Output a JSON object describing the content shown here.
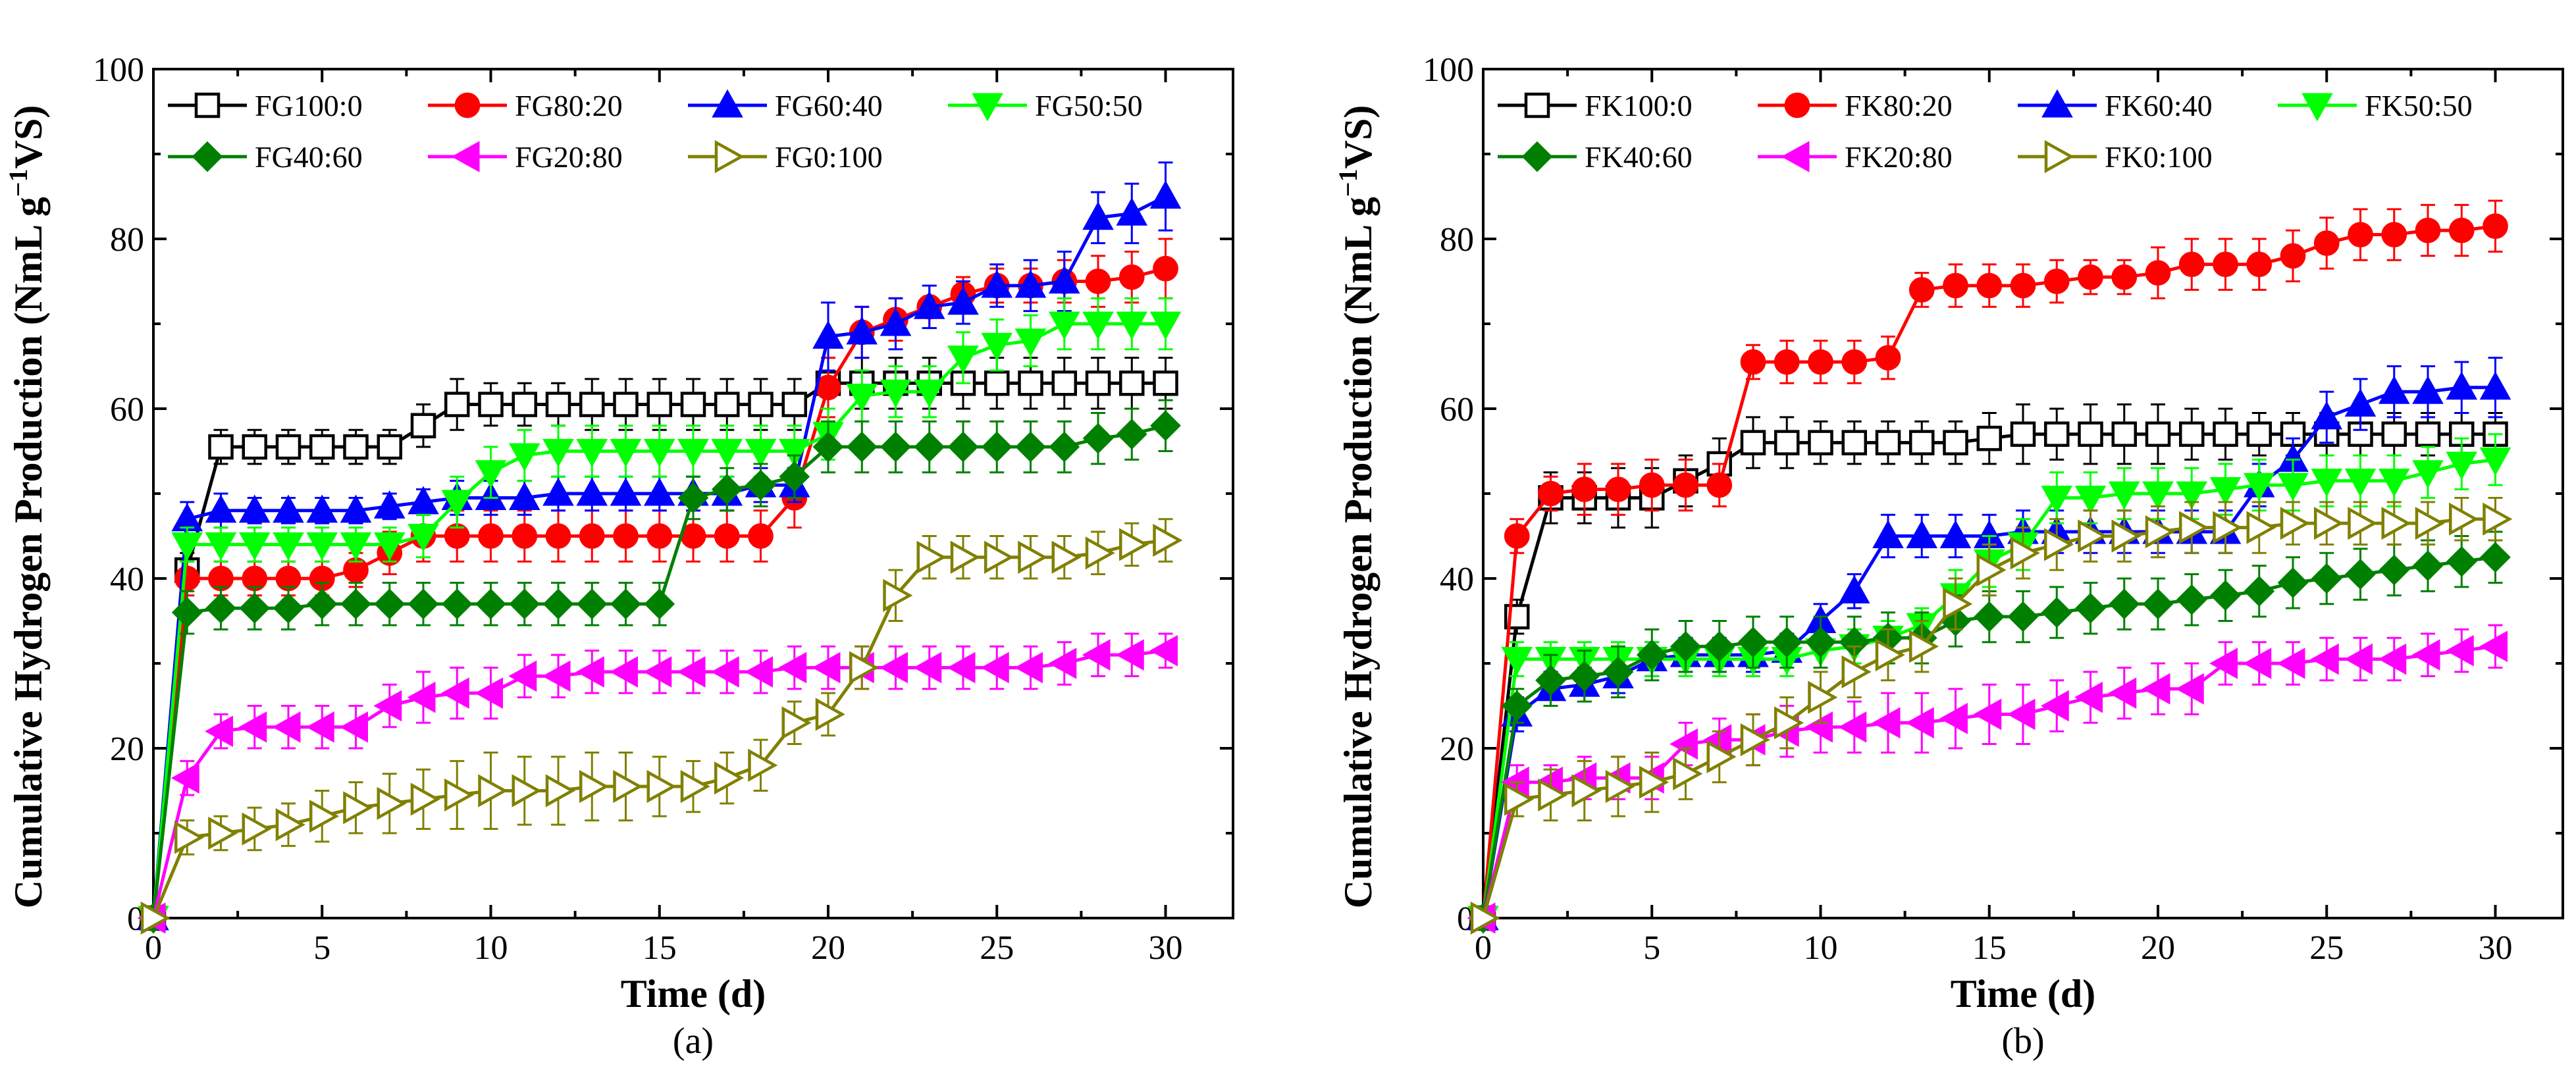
{
  "chart_data": [
    {
      "type": "line",
      "panel_label": "(a)",
      "xlabel": "Time (d)",
      "ylabel": "Cumulative Hydrogen Production (NmL g-1VS)",
      "ylabel_parts": {
        "main": "Cumulative Hydrogen Production (NmL g",
        "sup": "−1",
        "tail": "VS)"
      },
      "xlim": [
        0,
        32
      ],
      "ylim": [
        0,
        100
      ],
      "xticks": [
        0,
        5,
        10,
        15,
        20,
        25,
        30
      ],
      "yticks": [
        0,
        20,
        40,
        60,
        80,
        100
      ],
      "legend_position": "top-left",
      "x": [
        0,
        1,
        2,
        3,
        4,
        5,
        6,
        7,
        8,
        9,
        10,
        11,
        12,
        13,
        14,
        15,
        16,
        17,
        18,
        19,
        20,
        21,
        22,
        23,
        24,
        25,
        26,
        27,
        28,
        29,
        30
      ],
      "series": [
        {
          "name": "FG100:0",
          "color": "#000000",
          "marker": "square-open",
          "values": [
            0,
            41,
            55.5,
            55.5,
            55.5,
            55.5,
            55.5,
            55.5,
            58,
            60.5,
            60.5,
            60.5,
            60.5,
            60.5,
            60.5,
            60.5,
            60.5,
            60.5,
            60.5,
            60.5,
            63,
            63,
            63,
            63,
            63,
            63,
            63,
            63,
            63,
            63,
            63
          ],
          "errors": [
            0,
            2,
            2,
            2,
            2,
            2,
            2,
            2,
            2.5,
            3,
            2.5,
            2.5,
            2.5,
            3,
            3,
            3,
            3,
            3,
            3,
            3,
            3,
            3,
            3,
            3,
            3,
            3,
            3,
            3,
            3,
            3,
            3
          ]
        },
        {
          "name": "FG80:20",
          "color": "#ff0000",
          "marker": "circle",
          "values": [
            0,
            40,
            40,
            40,
            40,
            40,
            41,
            43,
            45,
            45,
            45,
            45,
            45,
            45,
            45,
            45,
            45,
            45,
            45,
            49.5,
            62.5,
            69,
            70.5,
            72,
            73.5,
            74.5,
            74.5,
            75,
            75,
            75.5,
            76.5
          ],
          "errors": [
            0,
            2,
            2,
            2,
            2,
            2,
            2,
            2.5,
            3,
            3,
            3,
            3,
            3,
            3,
            3,
            3,
            3,
            3,
            3,
            3.5,
            3.5,
            3,
            2.5,
            2.5,
            2,
            2,
            2,
            2.5,
            3,
            3,
            3.5
          ]
        },
        {
          "name": "FG60:40",
          "color": "#0000ff",
          "marker": "triangle-up",
          "values": [
            0,
            47,
            48,
            48,
            48,
            48,
            48,
            48.5,
            49,
            49.5,
            49.5,
            49.5,
            50,
            50,
            50,
            50,
            50,
            50,
            51,
            51,
            68.5,
            69,
            70,
            72,
            72.5,
            74.5,
            74.5,
            75,
            82.5,
            83,
            85
          ],
          "errors": [
            0,
            2,
            2,
            1.5,
            1.5,
            1.5,
            1.5,
            1.5,
            1.5,
            2,
            2,
            2,
            2,
            2,
            2,
            2,
            2,
            2,
            2,
            2,
            4,
            3,
            3,
            2.5,
            2.5,
            2.5,
            3,
            3.5,
            3,
            3.5,
            4
          ]
        },
        {
          "name": "FG50:50",
          "color": "#00ff00",
          "marker": "triangle-down",
          "values": [
            0,
            44,
            44,
            44,
            44,
            44,
            44,
            44,
            45,
            49,
            52.5,
            54.5,
            55,
            55,
            55,
            55,
            55,
            55,
            55,
            55,
            57,
            61.5,
            62,
            62,
            66,
            67.5,
            68,
            70,
            70,
            70,
            70
          ],
          "errors": [
            0,
            2,
            2,
            2,
            2,
            2,
            2,
            2,
            2.5,
            3,
            3,
            3,
            3,
            3,
            3,
            3,
            3,
            3,
            3,
            3,
            3,
            3,
            3,
            3,
            3,
            3,
            3,
            3,
            3,
            3,
            3
          ]
        },
        {
          "name": "FG40:60",
          "color": "#008000",
          "marker": "diamond",
          "values": [
            0,
            36,
            36.5,
            36.5,
            36.5,
            37,
            37,
            37,
            37,
            37,
            37,
            37,
            37,
            37,
            37,
            37,
            49.5,
            50.5,
            51,
            52,
            55.5,
            55.5,
            55.5,
            55.5,
            55.5,
            55.5,
            55.5,
            55.5,
            56.5,
            57,
            58
          ],
          "errors": [
            0,
            2.5,
            2.5,
            2.5,
            2.5,
            2.5,
            2.5,
            2.5,
            2.5,
            2.5,
            2.5,
            2.5,
            2.5,
            2.5,
            2.5,
            2.5,
            2.5,
            2.5,
            2.5,
            2.5,
            3,
            3,
            3,
            3,
            3,
            3,
            3,
            3,
            3,
            3,
            3
          ]
        },
        {
          "name": "FG20:80",
          "color": "#ff00ff",
          "marker": "triangle-left",
          "values": [
            0,
            16.5,
            22,
            22.5,
            22.5,
            22.5,
            22.5,
            25,
            26,
            26.5,
            26.5,
            28.5,
            28.5,
            29,
            29,
            29,
            29,
            29,
            29,
            29.5,
            29.5,
            29.5,
            29.5,
            29.5,
            29.5,
            29.5,
            29.5,
            30,
            31,
            31,
            31.5
          ],
          "errors": [
            0,
            2,
            2,
            2.5,
            2.5,
            2.5,
            2.5,
            2.5,
            3,
            3,
            3,
            2.5,
            2.5,
            2.5,
            2.5,
            2.5,
            2.5,
            2.5,
            2.5,
            2.5,
            2.5,
            2.5,
            2.5,
            2.5,
            2.5,
            2.5,
            2.5,
            2.5,
            2.5,
            2.5,
            2
          ]
        },
        {
          "name": "FG0:100",
          "color": "#808000",
          "marker": "triangle-right-open",
          "values": [
            0,
            9.5,
            10,
            10.5,
            11,
            12,
            13,
            13.5,
            14,
            14.5,
            15,
            15,
            15,
            15.5,
            15.5,
            15.5,
            15.5,
            16.5,
            18,
            23,
            24,
            29.5,
            38,
            42.5,
            42.5,
            42.5,
            42.5,
            42.5,
            43,
            44,
            44.5
          ],
          "errors": [
            0,
            2,
            2,
            2.5,
            2.5,
            3,
            3,
            3.5,
            3.5,
            4,
            4.5,
            4,
            4,
            4,
            4,
            3.5,
            3,
            3,
            3,
            2.5,
            2.5,
            2.5,
            3,
            2.5,
            2.5,
            2.5,
            2.5,
            2.5,
            2.5,
            2.5,
            2.5
          ]
        }
      ]
    },
    {
      "type": "line",
      "panel_label": "(b)",
      "xlabel": "Time (d)",
      "ylabel": "Cumulative Hydrogen Production (NmL g-1VS)",
      "ylabel_parts": {
        "main": "Cumulative Hydrogen Production (NmL g",
        "sup": "−1",
        "tail": "VS)"
      },
      "xlim": [
        0,
        32
      ],
      "ylim": [
        0,
        100
      ],
      "xticks": [
        0,
        5,
        10,
        15,
        20,
        25,
        30
      ],
      "yticks": [
        0,
        20,
        40,
        60,
        80,
        100
      ],
      "legend_position": "top-left",
      "x": [
        0,
        1,
        2,
        3,
        4,
        5,
        6,
        7,
        8,
        9,
        10,
        11,
        12,
        13,
        14,
        15,
        16,
        17,
        18,
        19,
        20,
        21,
        22,
        23,
        24,
        25,
        26,
        27,
        28,
        29,
        30
      ],
      "series": [
        {
          "name": "FK100:0",
          "color": "#000000",
          "marker": "square-open",
          "values": [
            0,
            35.5,
            49.5,
            49.5,
            49.5,
            49.5,
            51.5,
            53.5,
            56,
            56,
            56,
            56,
            56,
            56,
            56,
            56.5,
            57,
            57,
            57,
            57,
            57,
            57,
            57,
            57,
            57,
            57,
            57,
            57,
            57,
            57,
            57
          ],
          "errors": [
            0,
            2,
            3,
            3,
            3.5,
            3.5,
            3,
            3,
            3,
            3,
            2.5,
            2.5,
            2.5,
            2.5,
            2.5,
            3,
            3.5,
            3,
            3.5,
            3.5,
            3.5,
            3,
            3,
            2.5,
            2.5,
            2.5,
            2.5,
            2.5,
            2.5,
            2.5,
            2.5
          ]
        },
        {
          "name": "FK80:20",
          "color": "#ff0000",
          "marker": "circle",
          "values": [
            0,
            45,
            50,
            50.5,
            50.5,
            51,
            51,
            51,
            65.5,
            65.5,
            65.5,
            65.5,
            66,
            74,
            74.5,
            74.5,
            74.5,
            75,
            75.5,
            75.5,
            76,
            77,
            77,
            77,
            78,
            79.5,
            80.5,
            80.5,
            81,
            81,
            81.5
          ],
          "errors": [
            0,
            2,
            2,
            3,
            3,
            3,
            3,
            2.5,
            2,
            2.5,
            2.5,
            2.5,
            2.5,
            2,
            2.5,
            2.5,
            2.5,
            2.5,
            2,
            2,
            3,
            3,
            3,
            3,
            3,
            3,
            3,
            3,
            3,
            3,
            3
          ]
        },
        {
          "name": "FK60:40",
          "color": "#0000ff",
          "marker": "triangle-up",
          "values": [
            0,
            24,
            27,
            27.5,
            28.5,
            30.5,
            31,
            31,
            31,
            31.5,
            35,
            38.5,
            45,
            45,
            45,
            45,
            45.5,
            45.5,
            45.5,
            45.5,
            45.5,
            45.5,
            45.5,
            51,
            54,
            59,
            60.5,
            62,
            62,
            62.5,
            62.5
          ],
          "errors": [
            0,
            2,
            2,
            2,
            2,
            2,
            2,
            2,
            2,
            2,
            2,
            2,
            2.5,
            2.5,
            2.5,
            2.5,
            2.5,
            2.5,
            2.5,
            2.5,
            2.5,
            2.5,
            2.5,
            2.5,
            2.5,
            3,
            3,
            3,
            3,
            3,
            3.5
          ]
        },
        {
          "name": "FK50:50",
          "color": "#00ff00",
          "marker": "triangle-down",
          "values": [
            0,
            30.5,
            30.5,
            30.5,
            30.5,
            30.5,
            30.5,
            30.5,
            30.5,
            30.5,
            31.5,
            32,
            33,
            34.5,
            38,
            42,
            44,
            49.5,
            49.5,
            50,
            50,
            50,
            50.5,
            51,
            51,
            51.5,
            51.5,
            51.5,
            52.5,
            53.5,
            54
          ],
          "errors": [
            0,
            2,
            2,
            2,
            2,
            2,
            2,
            2,
            2,
            2,
            2,
            2,
            2,
            2,
            3,
            3,
            3,
            3,
            3,
            3,
            3,
            3,
            3,
            3,
            3,
            3,
            3,
            3,
            3,
            3,
            3
          ]
        },
        {
          "name": "FK40:60",
          "color": "#008000",
          "marker": "diamond",
          "values": [
            0,
            25,
            28,
            28.5,
            29,
            31,
            32,
            32,
            32.5,
            32.5,
            32.5,
            32.5,
            33,
            33,
            35,
            35.5,
            35.5,
            36,
            36.5,
            37,
            37,
            37.5,
            38,
            38.5,
            39.5,
            40,
            40.5,
            41,
            41.5,
            42,
            42.5
          ],
          "errors": [
            0,
            2,
            3,
            3,
            3,
            3,
            3,
            3,
            3,
            3,
            3,
            3,
            3,
            3,
            3,
            3,
            3,
            3,
            3,
            3,
            3,
            3,
            3,
            3,
            3,
            3,
            3,
            3,
            3,
            3,
            3
          ]
        },
        {
          "name": "FK20:80",
          "color": "#ff00ff",
          "marker": "triangle-left",
          "values": [
            0,
            16,
            16,
            16.5,
            16.5,
            16.5,
            20.5,
            21,
            21,
            22,
            22.5,
            22.5,
            23,
            23,
            23.5,
            24,
            24,
            25,
            26,
            26.5,
            27,
            27,
            30,
            30,
            30,
            30.5,
            30.5,
            30.5,
            31,
            31.5,
            32
          ],
          "errors": [
            0,
            2,
            2,
            2.5,
            2.5,
            2.5,
            2.5,
            2.5,
            3,
            3,
            3,
            3,
            3.5,
            3.5,
            3.5,
            3.5,
            3.5,
            3,
            3,
            3,
            3,
            3,
            2.5,
            2.5,
            2.5,
            2.5,
            2.5,
            2.5,
            2.5,
            2.5,
            2.5
          ]
        },
        {
          "name": "FK0:100",
          "color": "#808000",
          "marker": "triangle-right-open",
          "values": [
            0,
            14,
            14.5,
            15,
            15.5,
            16,
            17,
            19,
            21,
            23,
            26,
            29,
            31,
            32,
            37,
            41,
            43,
            44,
            45,
            45,
            45.5,
            46,
            46,
            46,
            46.5,
            46.5,
            46.5,
            46.5,
            46.5,
            47,
            47
          ],
          "errors": [
            0,
            2,
            3,
            3.5,
            3.5,
            3.5,
            3,
            3,
            3,
            3,
            3,
            3,
            3,
            3,
            3,
            3,
            3,
            3,
            3,
            3,
            3,
            3,
            3,
            3,
            2.5,
            2.5,
            2.5,
            2.5,
            2.5,
            2.5,
            2.5
          ]
        }
      ]
    }
  ]
}
